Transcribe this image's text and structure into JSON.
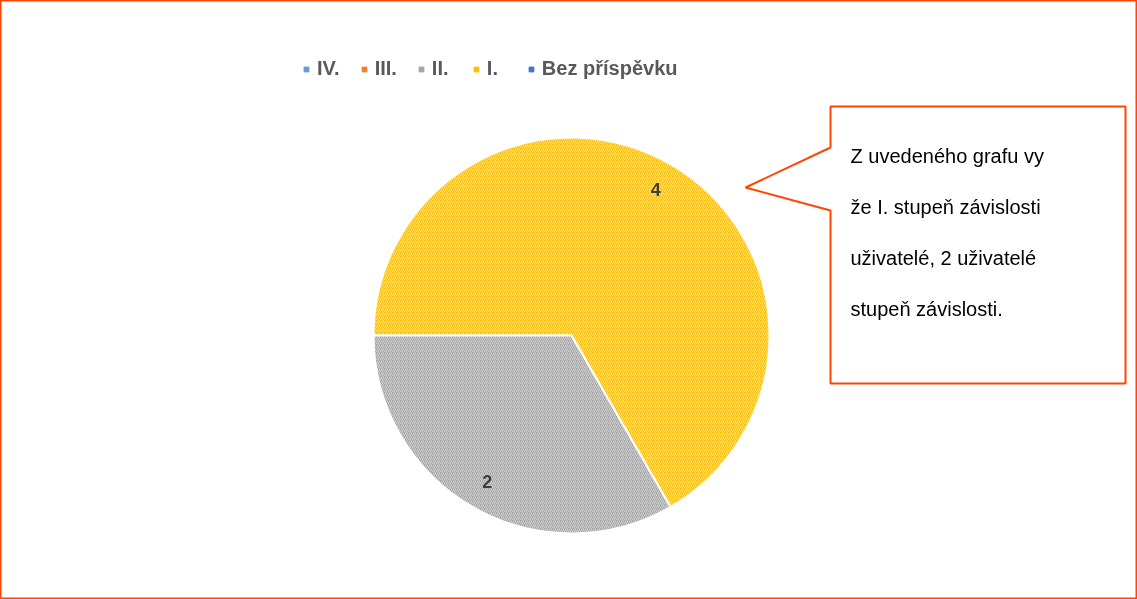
{
  "chart_data": {
    "type": "pie",
    "categories": [
      "IV.",
      "III.",
      "II.",
      "I.",
      "Bez příspěvku"
    ],
    "values": [
      0,
      0,
      2,
      4,
      0
    ],
    "colors": [
      "#5b9bd5",
      "#ed7d31",
      "#a5a5a5",
      "#ffc000",
      "#4472c4"
    ],
    "data_labels": true,
    "legend": "top",
    "annotations": [
      "Z uvedeného grafu vy\nže I. stupeň závislosti\nuživatelé, 2 uživatelé\nstupeň závislosti."
    ]
  }
}
